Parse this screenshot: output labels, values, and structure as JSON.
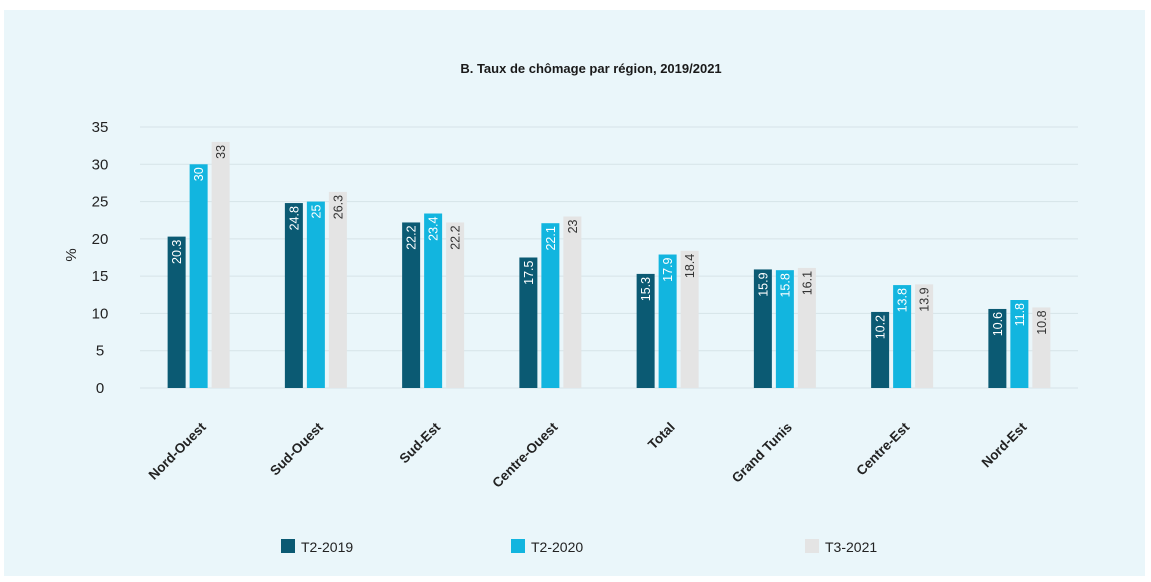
{
  "chart_data": {
    "type": "bar",
    "title": "B. Taux de chômage par région, 2019/2021",
    "ylabel": "%",
    "ylim": [
      0,
      35
    ],
    "yticks": [
      0,
      5,
      10,
      15,
      20,
      25,
      30,
      35
    ],
    "grid": true,
    "legend_position": "bottom",
    "categories": [
      "Nord-Ouest",
      "Sud-Ouest",
      "Sud-Est",
      "Centre-Ouest",
      "Total",
      "Grand Tunis",
      "Centre-Est",
      "Nord-Est"
    ],
    "series": [
      {
        "name": "T2-2019",
        "color": "#0b5a73",
        "label_color": "#ffffff",
        "values": [
          20.3,
          24.8,
          22.2,
          17.5,
          15.3,
          15.9,
          10.2,
          10.6
        ]
      },
      {
        "name": "T2-2020",
        "color": "#12b5df",
        "label_color": "#ffffff",
        "values": [
          30,
          25,
          23.4,
          22.1,
          17.9,
          15.8,
          13.8,
          11.8
        ]
      },
      {
        "name": "T3-2021",
        "color": "#e4e4e4",
        "label_color": "#333333",
        "values": [
          33,
          26.3,
          22.2,
          23,
          18.4,
          16.1,
          13.9,
          10.8
        ]
      }
    ]
  }
}
